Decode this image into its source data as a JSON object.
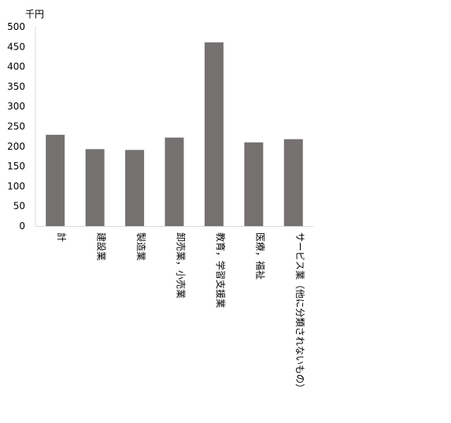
{
  "chart_data": {
    "type": "bar",
    "unit_label": "千円",
    "categories": [
      "計",
      "建設業",
      "製造業",
      "卸売業，小売業",
      "教育，学習支援業",
      "医療，福祉",
      "サービス業（他に分類されないもの）"
    ],
    "values": [
      229,
      193,
      191,
      222,
      461,
      210,
      218
    ],
    "ylim": [
      0,
      500
    ],
    "yticks": [
      "0",
      "50",
      "100",
      "150",
      "200",
      "250",
      "300",
      "350",
      "400",
      "450",
      "500"
    ],
    "grid": false,
    "colors": {
      "bar": "#767171",
      "axis": "#d9d9d9"
    }
  }
}
